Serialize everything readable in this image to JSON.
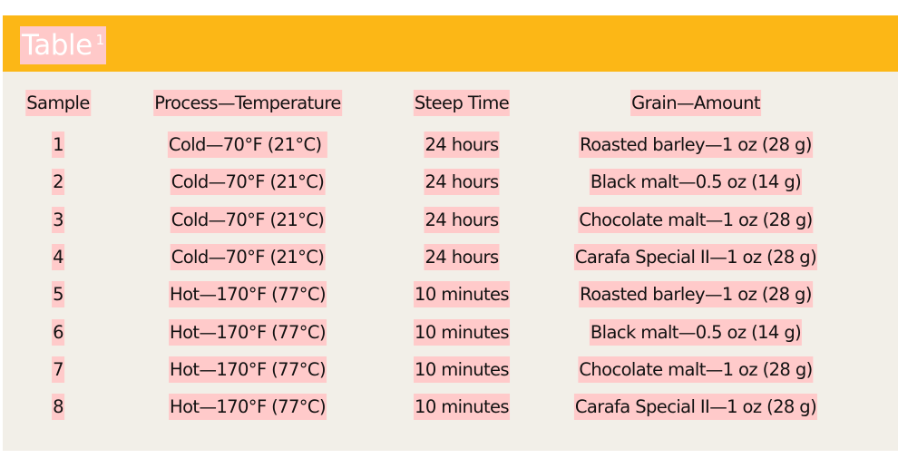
{
  "table": {
    "title": "Table",
    "title_superscript": "1",
    "headers": [
      "Sample",
      "Process—Temperature",
      "Steep Time",
      "Grain—Amount"
    ],
    "rows": [
      [
        "1",
        "Cold—70°F (21°C) ",
        "24 hours",
        "Roasted barley—1 oz (28 g)"
      ],
      [
        "2",
        "Cold—70°F (21°C)",
        "24 hours",
        "Black malt—0.5 oz (14 g)"
      ],
      [
        "3",
        "Cold—70°F (21°C)",
        "24 hours",
        "Chocolate malt—1 oz (28 g)"
      ],
      [
        "4",
        "Cold—70°F (21°C)",
        "24 hours",
        "Carafa Special II—1 oz (28 g)"
      ],
      [
        "5",
        "Hot—170°F (77°C)",
        "10 minutes",
        "Roasted barley—1 oz (28 g)"
      ],
      [
        "6",
        "Hot—170°F (77°C)",
        "10 minutes",
        "Black malt—0.5 oz (14 g)"
      ],
      [
        "7",
        "Hot—170°F (77°C)",
        "10 minutes",
        "Chocolate malt—1 oz (28 g)"
      ],
      [
        "8",
        "Hot—170°F (77°C)",
        "10 minutes",
        "Carafa Special II—1 oz (28 g)"
      ]
    ]
  },
  "colors": {
    "banner": "#fcb716",
    "panel": "#f2efe8",
    "highlight": "#ffcaca",
    "title_text": "#ffffff",
    "body_text": "#111111"
  }
}
